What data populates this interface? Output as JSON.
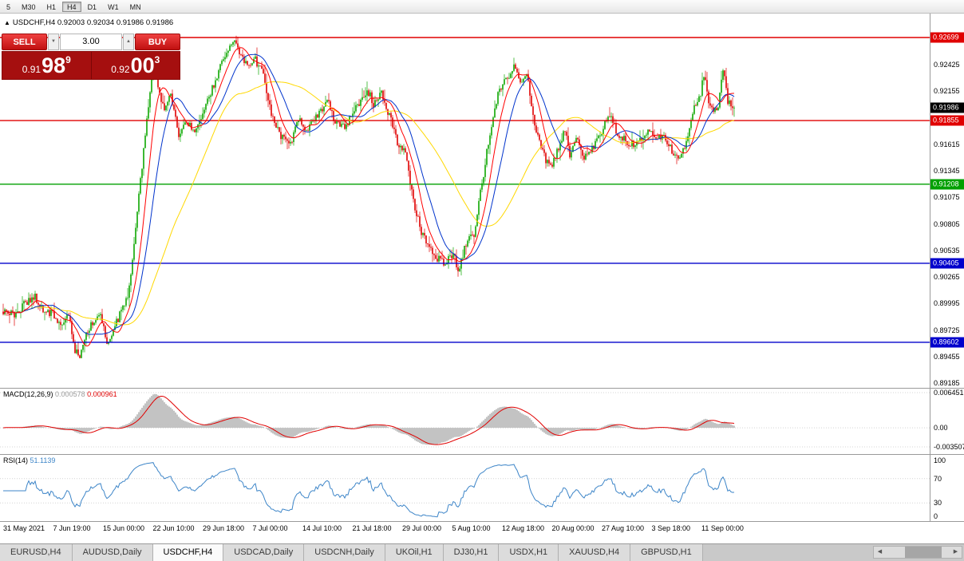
{
  "toolbar": {
    "timeframes": [
      "5",
      "M30",
      "H1",
      "H4",
      "D1",
      "W1",
      "MN"
    ],
    "active": "H4"
  },
  "chart": {
    "symbol": "USDCHF,H4",
    "ohlc": "0.92003 0.92034 0.91986 0.91986"
  },
  "icons": {
    "marker_up": "▲",
    "spin_up": "▲",
    "spin_down": "▼",
    "scroll_left": "◀",
    "scroll_right": "▶"
  },
  "trade_panel": {
    "sell_label": "SELL",
    "buy_label": "BUY",
    "volume": "3.00",
    "sell_price": {
      "prefix": "0.91",
      "big": "98",
      "sup": "9"
    },
    "buy_price": {
      "prefix": "0.92",
      "big": "00",
      "sup": "3"
    }
  },
  "price_axis": {
    "labels": [
      "0.92425",
      "0.92155",
      "0.91615",
      "0.91345",
      "0.91075",
      "0.90805",
      "0.90535",
      "0.90265",
      "0.89995",
      "0.89725",
      "0.89455",
      "0.89185"
    ],
    "badges": [
      {
        "text": "0.92699",
        "color": "#e00000"
      },
      {
        "text": "0.91986",
        "color": "#000000"
      },
      {
        "text": "0.91855",
        "color": "#e00000"
      },
      {
        "text": "0.91208",
        "color": "#00a000"
      },
      {
        "text": "0.90405",
        "color": "#0000cc"
      },
      {
        "text": "0.89602",
        "color": "#0000cc"
      }
    ]
  },
  "indicators": {
    "macd": {
      "name": "MACD(12,26,9)",
      "value1": "0.000578",
      "value2": "0.000961",
      "axis": [
        "0.006451",
        "0.00",
        "-0.003507"
      ]
    },
    "rsi": {
      "name": "RSI(14)",
      "value": "51.1139",
      "axis": [
        "100",
        "70",
        "30",
        "0"
      ]
    }
  },
  "time_axis": [
    "31 May 2021",
    "7 Jun 19:00",
    "15 Jun 00:00",
    "22 Jun 10:00",
    "29 Jun 18:00",
    "7 Jul 00:00",
    "14 Jul 10:00",
    "21 Jul 18:00",
    "29 Jul 00:00",
    "5 Aug 10:00",
    "12 Aug 18:00",
    "20 Aug 00:00",
    "27 Aug 10:00",
    "3 Sep 18:00",
    "11 Sep 00:00"
  ],
  "tabs": {
    "items": [
      "EURUSD,H4",
      "AUDUSD,Daily",
      "USDCHF,H4",
      "USDCAD,Daily",
      "USDCNH,Daily",
      "UKOil,H1",
      "DJ30,H1",
      "USDX,H1",
      "XAUUSD,H4",
      "GBPUSD,H1"
    ],
    "active": "USDCHF,H4"
  },
  "chart_data": {
    "type": "candlestick",
    "symbol": "USDCHF",
    "timeframe": "H4",
    "bars": 459,
    "current_price": 0.91986,
    "y_axis": {
      "min": 0.89139,
      "max": 0.92942
    },
    "macd_axis": {
      "min": -0.003507,
      "max": 0.006451
    },
    "rsi_axis": {
      "min": 0,
      "max": 100
    },
    "levels": [
      {
        "price": 0.92699,
        "color": "#e00000"
      },
      {
        "price": 0.91855,
        "color": "#e00000"
      },
      {
        "price": 0.91208,
        "color": "#00a000"
      },
      {
        "price": 0.90405,
        "color": "#0000cc"
      },
      {
        "price": 0.89602,
        "color": "#0000cc"
      }
    ],
    "ma_periods": {
      "fast": 10,
      "mid": 20,
      "slow": 55
    },
    "macd_params": [
      12,
      26,
      9
    ],
    "rsi_period": 14,
    "colors": {
      "up": "#0da600",
      "down": "#e00000",
      "ma_fast": "#ff0000",
      "ma_mid": "#0033cc",
      "ma_slow": "#ffd800",
      "macd_hist": "#b4b4b4",
      "macd_signal": "#e00000",
      "rsi": "#3d85c8"
    },
    "price_anchors": [
      [
        0,
        0.8992
      ],
      [
        8,
        0.8988
      ],
      [
        14,
        0.9
      ],
      [
        20,
        0.9006
      ],
      [
        24,
        0.8994
      ],
      [
        30,
        0.899
      ],
      [
        36,
        0.8978
      ],
      [
        41,
        0.899
      ],
      [
        45,
        0.8952
      ],
      [
        48,
        0.8942
      ],
      [
        52,
        0.8968
      ],
      [
        57,
        0.8982
      ],
      [
        61,
        0.8992
      ],
      [
        65,
        0.8958
      ],
      [
        69,
        0.8975
      ],
      [
        73,
        0.8988
      ],
      [
        78,
        0.9005
      ],
      [
        82,
        0.906
      ],
      [
        86,
        0.9125
      ],
      [
        90,
        0.9185
      ],
      [
        94,
        0.9242
      ],
      [
        98,
        0.9215
      ],
      [
        101,
        0.9192
      ],
      [
        105,
        0.9212
      ],
      [
        110,
        0.9172
      ],
      [
        115,
        0.9182
      ],
      [
        121,
        0.9176
      ],
      [
        127,
        0.92
      ],
      [
        133,
        0.9227
      ],
      [
        140,
        0.9256
      ],
      [
        145,
        0.9268
      ],
      [
        149,
        0.9252
      ],
      [
        153,
        0.9239
      ],
      [
        157,
        0.9249
      ],
      [
        162,
        0.9237
      ],
      [
        169,
        0.9186
      ],
      [
        174,
        0.9168
      ],
      [
        180,
        0.9161
      ],
      [
        185,
        0.9186
      ],
      [
        190,
        0.9174
      ],
      [
        197,
        0.9191
      ],
      [
        203,
        0.9206
      ],
      [
        208,
        0.9184
      ],
      [
        214,
        0.918
      ],
      [
        221,
        0.9197
      ],
      [
        228,
        0.9217
      ],
      [
        232,
        0.9203
      ],
      [
        237,
        0.9212
      ],
      [
        242,
        0.919
      ],
      [
        247,
        0.9163
      ],
      [
        252,
        0.9151
      ],
      [
        257,
        0.9104
      ],
      [
        262,
        0.9073
      ],
      [
        267,
        0.9058
      ],
      [
        272,
        0.9046
      ],
      [
        277,
        0.9039
      ],
      [
        282,
        0.9051
      ],
      [
        285,
        0.9031
      ],
      [
        290,
        0.906
      ],
      [
        295,
        0.9071
      ],
      [
        300,
        0.9122
      ],
      [
        305,
        0.9173
      ],
      [
        310,
        0.9214
      ],
      [
        315,
        0.9226
      ],
      [
        320,
        0.9239
      ],
      [
        324,
        0.9224
      ],
      [
        328,
        0.9231
      ],
      [
        333,
        0.9184
      ],
      [
        338,
        0.9152
      ],
      [
        343,
        0.9137
      ],
      [
        348,
        0.9158
      ],
      [
        352,
        0.9178
      ],
      [
        355,
        0.9151
      ],
      [
        359,
        0.9166
      ],
      [
        364,
        0.9147
      ],
      [
        369,
        0.9157
      ],
      [
        374,
        0.9171
      ],
      [
        379,
        0.9193
      ],
      [
        384,
        0.9176
      ],
      [
        389,
        0.9166
      ],
      [
        394,
        0.9161
      ],
      [
        399,
        0.9167
      ],
      [
        404,
        0.9176
      ],
      [
        409,
        0.9166
      ],
      [
        414,
        0.9172
      ],
      [
        419,
        0.9156
      ],
      [
        424,
        0.9144
      ],
      [
        429,
        0.9172
      ],
      [
        434,
        0.9205
      ],
      [
        437,
        0.9214
      ],
      [
        439,
        0.9231
      ],
      [
        442,
        0.9206
      ],
      [
        446,
        0.9196
      ],
      [
        448,
        0.9199
      ],
      [
        451,
        0.9239
      ],
      [
        454,
        0.9206
      ],
      [
        458,
        0.91986
      ]
    ]
  }
}
